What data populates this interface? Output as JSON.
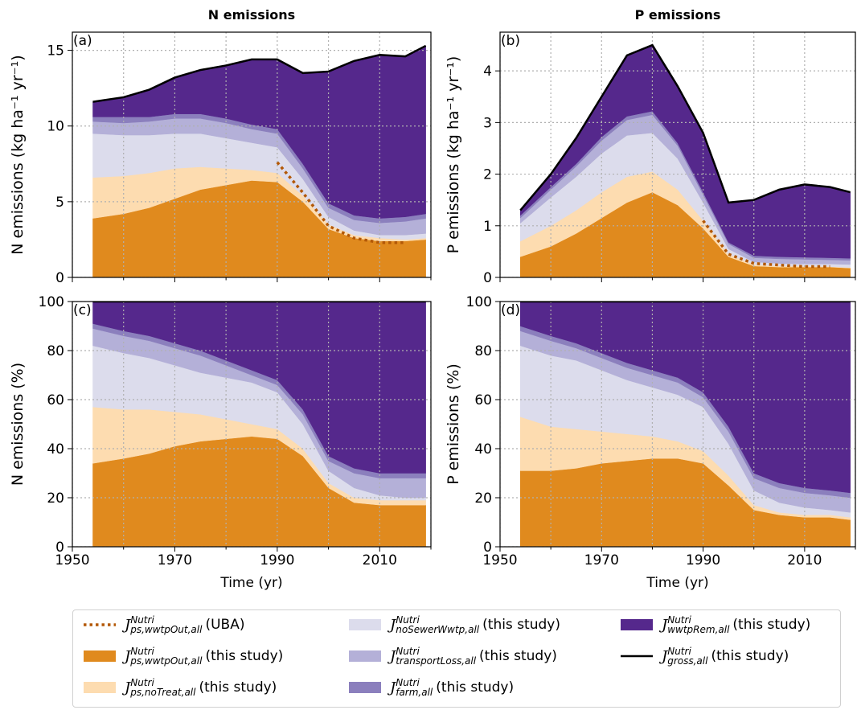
{
  "chart_data": [
    {
      "type": "area",
      "stacked": true,
      "title": "N emissions",
      "label": "(a)",
      "ylabel": "N emissions (kg ha⁻¹ yr⁻¹)",
      "x": [
        1954,
        1960,
        1965,
        1970,
        1975,
        1980,
        1985,
        1990,
        1995,
        2000,
        2005,
        2010,
        2015,
        2019
      ],
      "xlim": [
        1950,
        2020
      ],
      "xticks": [
        1950,
        1970,
        1990,
        2010
      ],
      "xminor": [
        1960,
        1980,
        2000,
        2020
      ],
      "xtick_labels": false,
      "ylim": [
        0,
        16.2
      ],
      "yticks": [
        0,
        5,
        10,
        15
      ],
      "grid": true,
      "series": [
        {
          "name": "J_{ps,wwtpOut,all}^{Nutri} (UBA)",
          "type": "line",
          "style": "dotted",
          "color": "#b35806",
          "values": [
            null,
            null,
            null,
            null,
            null,
            null,
            null,
            7.6,
            5.6,
            3.4,
            2.6,
            2.3,
            2.3,
            null
          ]
        },
        {
          "name": "J_{ps,wwtpOut,all}^{Nutri} (this study)",
          "type": "area",
          "color": "#e08a1e",
          "values": [
            3.9,
            4.2,
            4.6,
            5.2,
            5.8,
            6.1,
            6.4,
            6.3,
            5.0,
            3.2,
            2.6,
            2.4,
            2.4,
            2.5
          ]
        },
        {
          "name": "J_{ps,noTreat,all}^{Nutri} (this study)",
          "type": "area",
          "color": "#fddcb0",
          "values": [
            2.7,
            2.5,
            2.3,
            2.0,
            1.5,
            1.1,
            0.7,
            0.6,
            0.4,
            0.3,
            0.2,
            0.2,
            0.1,
            0.1
          ]
        },
        {
          "name": "J_{noSewerWwtp,all}^{Nutri} (this study)",
          "type": "area",
          "color": "#dcdcec",
          "values": [
            2.9,
            2.7,
            2.5,
            2.3,
            2.2,
            2.0,
            1.8,
            1.7,
            1.1,
            0.5,
            0.3,
            0.2,
            0.3,
            0.3
          ]
        },
        {
          "name": "J_{transportLoss,all}^{Nutri} (this study)",
          "type": "area",
          "color": "#b4b0d8",
          "values": [
            0.8,
            0.8,
            0.9,
            1.0,
            1.0,
            1.0,
            0.9,
            0.9,
            0.7,
            0.6,
            0.7,
            0.8,
            0.9,
            1.0
          ]
        },
        {
          "name": "J_{farm,all}^{Nutri} (this study)",
          "type": "area",
          "color": "#8b7fbd",
          "values": [
            0.3,
            0.4,
            0.3,
            0.3,
            0.3,
            0.3,
            0.3,
            0.3,
            0.3,
            0.3,
            0.3,
            0.3,
            0.3,
            0.3
          ]
        },
        {
          "name": "J_{wwtpRem,all}^{Nutri} (this study)",
          "type": "area",
          "color": "#55288c",
          "values": [
            1.0,
            1.3,
            1.8,
            2.4,
            2.9,
            3.5,
            4.3,
            4.6,
            6.0,
            8.7,
            10.2,
            10.8,
            10.6,
            11.1
          ]
        },
        {
          "name": "J_{gross,all}^{Nutri} (this study)",
          "type": "line",
          "style": "solid",
          "color": "#000000",
          "values": [
            11.6,
            11.9,
            12.4,
            13.2,
            13.7,
            14.0,
            14.4,
            14.4,
            13.5,
            13.6,
            14.3,
            14.7,
            14.6,
            15.3
          ]
        }
      ]
    },
    {
      "type": "area",
      "stacked": true,
      "title": "P emissions",
      "label": "(b)",
      "ylabel": "P emissions (kg ha⁻¹ yr⁻¹)",
      "x": [
        1954,
        1960,
        1965,
        1970,
        1975,
        1980,
        1985,
        1990,
        1995,
        2000,
        2005,
        2010,
        2015,
        2019
      ],
      "xlim": [
        1950,
        2020
      ],
      "xticks": [
        1950,
        1970,
        1990,
        2010
      ],
      "xminor": [
        1960,
        1980,
        2000,
        2020
      ],
      "xtick_labels": false,
      "ylim": [
        0,
        4.75
      ],
      "yticks": [
        0,
        1,
        2,
        3,
        4
      ],
      "grid": true,
      "series": [
        {
          "type": "line",
          "style": "dotted",
          "color": "#b35806",
          "values": [
            null,
            null,
            null,
            null,
            null,
            null,
            null,
            1.1,
            0.45,
            0.27,
            0.24,
            0.21,
            0.21,
            null
          ]
        },
        {
          "type": "area",
          "color": "#e08a1e",
          "values": [
            0.4,
            0.6,
            0.85,
            1.15,
            1.45,
            1.65,
            1.4,
            0.95,
            0.4,
            0.22,
            0.2,
            0.2,
            0.2,
            0.18
          ]
        },
        {
          "type": "area",
          "color": "#fddcb0",
          "values": [
            0.3,
            0.4,
            0.45,
            0.5,
            0.5,
            0.4,
            0.3,
            0.15,
            0.05,
            0.03,
            0.02,
            0.02,
            0.01,
            0.01
          ]
        },
        {
          "type": "area",
          "color": "#dcdcec",
          "values": [
            0.35,
            0.55,
            0.65,
            0.75,
            0.8,
            0.75,
            0.6,
            0.35,
            0.1,
            0.05,
            0.05,
            0.04,
            0.05,
            0.06
          ]
        },
        {
          "type": "area",
          "color": "#b4b0d8",
          "values": [
            0.1,
            0.15,
            0.2,
            0.25,
            0.3,
            0.35,
            0.25,
            0.15,
            0.1,
            0.08,
            0.09,
            0.09,
            0.08,
            0.08
          ]
        },
        {
          "type": "area",
          "color": "#8b7fbd",
          "values": [
            0.05,
            0.05,
            0.05,
            0.07,
            0.07,
            0.07,
            0.05,
            0.05,
            0.03,
            0.04,
            0.04,
            0.04,
            0.04,
            0.04
          ]
        },
        {
          "type": "area",
          "color": "#55288c",
          "values": [
            0.1,
            0.25,
            0.5,
            0.78,
            1.18,
            1.28,
            1.1,
            1.15,
            0.77,
            1.08,
            1.3,
            1.41,
            1.37,
            1.28
          ]
        },
        {
          "type": "line",
          "style": "solid",
          "color": "#000000",
          "values": [
            1.3,
            2.0,
            2.7,
            3.5,
            4.3,
            4.5,
            3.7,
            2.8,
            1.45,
            1.5,
            1.7,
            1.8,
            1.75,
            1.65
          ]
        }
      ]
    },
    {
      "type": "area",
      "stacked": true,
      "label": "(c)",
      "ylabel": "N emissions (%)",
      "xlabel": "Time (yr)",
      "x": [
        1954,
        1960,
        1965,
        1970,
        1975,
        1980,
        1985,
        1990,
        1995,
        2000,
        2005,
        2010,
        2015,
        2019
      ],
      "xlim": [
        1950,
        2020
      ],
      "xticks": [
        1950,
        1970,
        1990,
        2010
      ],
      "xminor": [
        1960,
        1980,
        2000,
        2020
      ],
      "ylim": [
        0,
        100
      ],
      "yticks": [
        0,
        20,
        40,
        60,
        80,
        100
      ],
      "grid": true,
      "series": [
        {
          "type": "area",
          "color": "#e08a1e",
          "values": [
            34,
            36,
            38,
            41,
            43,
            44,
            45,
            44,
            37,
            24,
            18,
            17,
            17,
            17
          ]
        },
        {
          "type": "area",
          "color": "#fddcb0",
          "values": [
            23,
            20,
            18,
            14,
            11,
            8,
            5,
            4,
            3,
            2,
            2,
            2,
            2,
            2
          ]
        },
        {
          "type": "area",
          "color": "#dcdcec",
          "values": [
            25,
            23,
            21,
            19,
            17,
            17,
            17,
            15,
            10,
            5,
            4,
            2,
            1,
            1
          ]
        },
        {
          "type": "area",
          "color": "#b4b0d8",
          "values": [
            7,
            7,
            7,
            7,
            7,
            5,
            3,
            3,
            4,
            4,
            6,
            7,
            8,
            8
          ]
        },
        {
          "type": "area",
          "color": "#8b7fbd",
          "values": [
            2,
            2,
            2,
            2,
            2,
            2,
            2,
            2,
            2,
            2,
            2,
            2,
            2,
            2
          ]
        },
        {
          "type": "area",
          "color": "#55288c",
          "values": [
            9,
            12,
            14,
            17,
            20,
            24,
            28,
            32,
            44,
            63,
            68,
            70,
            70,
            70
          ]
        },
        {
          "type": "line",
          "style": "solid",
          "color": "#000000",
          "values": [
            100,
            100,
            100,
            100,
            100,
            100,
            100,
            100,
            100,
            100,
            100,
            100,
            100,
            100
          ]
        }
      ]
    },
    {
      "type": "area",
      "stacked": true,
      "label": "(d)",
      "ylabel": "P emissions (%)",
      "xlabel": "Time (yr)",
      "x": [
        1954,
        1960,
        1965,
        1970,
        1975,
        1980,
        1985,
        1990,
        1995,
        2000,
        2005,
        2010,
        2015,
        2019
      ],
      "xlim": [
        1950,
        2020
      ],
      "xticks": [
        1950,
        1970,
        1990,
        2010
      ],
      "xminor": [
        1960,
        1980,
        2000,
        2020
      ],
      "ylim": [
        0,
        100
      ],
      "yticks": [
        0,
        20,
        40,
        60,
        80,
        100
      ],
      "grid": true,
      "series": [
        {
          "type": "area",
          "color": "#e08a1e",
          "values": [
            31,
            31,
            32,
            34,
            35,
            36,
            36,
            34,
            25,
            15,
            13,
            12,
            12,
            11
          ]
        },
        {
          "type": "area",
          "color": "#fddcb0",
          "values": [
            22,
            18,
            16,
            13,
            11,
            9,
            7,
            5,
            4,
            2,
            1,
            1,
            1,
            1
          ]
        },
        {
          "type": "area",
          "color": "#dcdcec",
          "values": [
            29,
            29,
            28,
            25,
            22,
            20,
            19,
            18,
            13,
            6,
            4,
            3,
            2,
            2
          ]
        },
        {
          "type": "area",
          "color": "#b4b0d8",
          "values": [
            6,
            6,
            5,
            5,
            5,
            5,
            5,
            4,
            5,
            5,
            6,
            6,
            6,
            6
          ]
        },
        {
          "type": "area",
          "color": "#8b7fbd",
          "values": [
            2,
            2,
            2,
            2,
            2,
            2,
            2,
            2,
            2,
            2,
            2,
            2,
            2,
            2
          ]
        },
        {
          "type": "area",
          "color": "#55288c",
          "values": [
            10,
            14,
            17,
            21,
            25,
            28,
            31,
            37,
            51,
            70,
            74,
            76,
            77,
            78
          ]
        },
        {
          "type": "line",
          "style": "solid",
          "color": "#000000",
          "values": [
            100,
            100,
            100,
            100,
            100,
            100,
            100,
            100,
            100,
            100,
            100,
            100,
            100,
            100
          ]
        }
      ]
    }
  ]
}
